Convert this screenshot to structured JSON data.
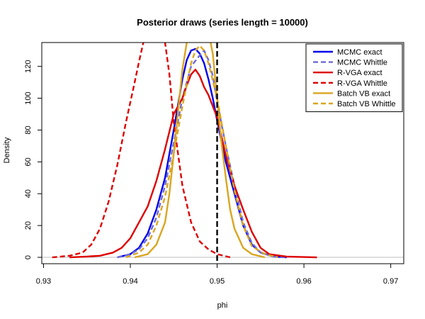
{
  "chart_data": {
    "type": "line",
    "title": "Posterior draws (series length = 10000)",
    "xlabel": "phi",
    "ylabel": "Density",
    "xlim": [
      0.9298,
      0.9715
    ],
    "ylim": [
      -4,
      135
    ],
    "x_ticks": [
      {
        "value": 0.93,
        "label": "0.93"
      },
      {
        "value": 0.94,
        "label": "0.94"
      },
      {
        "value": 0.95,
        "label": "0.95"
      },
      {
        "value": 0.96,
        "label": "0.96"
      },
      {
        "value": 0.97,
        "label": "0.97"
      }
    ],
    "y_ticks": [
      {
        "value": 0,
        "label": "0"
      },
      {
        "value": 20,
        "label": "20"
      },
      {
        "value": 40,
        "label": "40"
      },
      {
        "value": 60,
        "label": "60"
      },
      {
        "value": 80,
        "label": "80"
      },
      {
        "value": 100,
        "label": "100"
      },
      {
        "value": 120,
        "label": "120"
      }
    ],
    "zero_line": 0,
    "vertical_line": {
      "x": 0.95,
      "color": "#000000",
      "dash": true
    },
    "legend_position": "top-right",
    "series": [
      {
        "name": "MCMC exact",
        "color": "#0000ee",
        "dash": false,
        "points": [
          [
            0.9385,
            0
          ],
          [
            0.94,
            2
          ],
          [
            0.941,
            6
          ],
          [
            0.942,
            15
          ],
          [
            0.943,
            30
          ],
          [
            0.944,
            50
          ],
          [
            0.945,
            80
          ],
          [
            0.946,
            112
          ],
          [
            0.9465,
            124
          ],
          [
            0.947,
            130
          ],
          [
            0.9475,
            131
          ],
          [
            0.948,
            128
          ],
          [
            0.9485,
            122
          ],
          [
            0.949,
            112
          ],
          [
            0.9495,
            100
          ],
          [
            0.95,
            86
          ],
          [
            0.951,
            60
          ],
          [
            0.952,
            40
          ],
          [
            0.953,
            20
          ],
          [
            0.954,
            8
          ],
          [
            0.955,
            3
          ],
          [
            0.9565,
            0.5
          ],
          [
            0.958,
            0
          ]
        ]
      },
      {
        "name": "MCMC Whittle",
        "color": "#6a6ad8",
        "dash": true,
        "points": [
          [
            0.9385,
            0
          ],
          [
            0.94,
            2
          ],
          [
            0.941,
            5
          ],
          [
            0.942,
            12
          ],
          [
            0.943,
            25
          ],
          [
            0.944,
            45
          ],
          [
            0.945,
            72
          ],
          [
            0.946,
            100
          ],
          [
            0.947,
            120
          ],
          [
            0.948,
            127
          ],
          [
            0.9485,
            130
          ],
          [
            0.949,
            124
          ],
          [
            0.9495,
            114
          ],
          [
            0.95,
            98
          ],
          [
            0.951,
            70
          ],
          [
            0.952,
            45
          ],
          [
            0.953,
            22
          ],
          [
            0.954,
            9
          ],
          [
            0.955,
            3
          ],
          [
            0.9565,
            0.5
          ],
          [
            0.958,
            0
          ]
        ]
      },
      {
        "name": "R-VGA exact",
        "color": "#dd0000",
        "dash": false,
        "points": [
          [
            0.933,
            0
          ],
          [
            0.935,
            0.5
          ],
          [
            0.9365,
            1
          ],
          [
            0.938,
            3
          ],
          [
            0.939,
            6
          ],
          [
            0.94,
            12
          ],
          [
            0.941,
            22
          ],
          [
            0.942,
            32
          ],
          [
            0.943,
            48
          ],
          [
            0.944,
            68
          ],
          [
            0.945,
            90
          ],
          [
            0.946,
            100
          ],
          [
            0.9465,
            108
          ],
          [
            0.947,
            115
          ],
          [
            0.9475,
            118
          ],
          [
            0.948,
            114
          ],
          [
            0.9485,
            107
          ],
          [
            0.949,
            102
          ],
          [
            0.9495,
            95
          ],
          [
            0.95,
            88
          ],
          [
            0.951,
            64
          ],
          [
            0.952,
            45
          ],
          [
            0.953,
            30
          ],
          [
            0.954,
            16
          ],
          [
            0.955,
            6
          ],
          [
            0.956,
            2
          ],
          [
            0.958,
            0.5
          ],
          [
            0.9615,
            0
          ]
        ]
      },
      {
        "name": "R-VGA Whittle",
        "color": "#dd0000",
        "dash": true,
        "points": [
          [
            0.931,
            0
          ],
          [
            0.933,
            1
          ],
          [
            0.9345,
            3
          ],
          [
            0.9355,
            8
          ],
          [
            0.9365,
            18
          ],
          [
            0.9375,
            35
          ],
          [
            0.9385,
            58
          ],
          [
            0.9395,
            85
          ],
          [
            0.9405,
            110
          ],
          [
            0.941,
            123
          ],
          [
            0.9415,
            135
          ],
          [
            0.9425,
            140
          ],
          [
            0.9435,
            140
          ],
          [
            0.944,
            135
          ],
          [
            0.9445,
            115
          ],
          [
            0.945,
            85
          ],
          [
            0.946,
            45
          ],
          [
            0.947,
            22
          ],
          [
            0.948,
            10
          ],
          [
            0.949,
            5
          ],
          [
            0.95,
            2
          ],
          [
            0.9515,
            0
          ]
        ]
      },
      {
        "name": "Batch VB exact",
        "color": "#daa520",
        "dash": false,
        "points": [
          [
            0.9405,
            0
          ],
          [
            0.942,
            2
          ],
          [
            0.943,
            8
          ],
          [
            0.944,
            22
          ],
          [
            0.9445,
            40
          ],
          [
            0.945,
            65
          ],
          [
            0.9455,
            92
          ],
          [
            0.946,
            118
          ],
          [
            0.9465,
            135
          ],
          [
            0.947,
            142
          ],
          [
            0.948,
            142
          ],
          [
            0.949,
            142
          ],
          [
            0.9495,
            128
          ],
          [
            0.95,
            100
          ],
          [
            0.9505,
            72
          ],
          [
            0.951,
            50
          ],
          [
            0.9515,
            30
          ],
          [
            0.952,
            18
          ],
          [
            0.953,
            6
          ],
          [
            0.954,
            2
          ],
          [
            0.9555,
            0
          ]
        ]
      },
      {
        "name": "Batch VB Whittle",
        "color": "#daa520",
        "dash": true,
        "points": [
          [
            0.9395,
            0
          ],
          [
            0.941,
            3
          ],
          [
            0.942,
            8
          ],
          [
            0.943,
            20
          ],
          [
            0.944,
            38
          ],
          [
            0.945,
            65
          ],
          [
            0.946,
            95
          ],
          [
            0.947,
            122
          ],
          [
            0.9475,
            130
          ],
          [
            0.948,
            133
          ],
          [
            0.9485,
            130
          ],
          [
            0.949,
            122
          ],
          [
            0.95,
            100
          ],
          [
            0.951,
            70
          ],
          [
            0.952,
            42
          ],
          [
            0.953,
            20
          ],
          [
            0.954,
            7
          ],
          [
            0.9555,
            2
          ],
          [
            0.957,
            0
          ]
        ]
      }
    ]
  }
}
